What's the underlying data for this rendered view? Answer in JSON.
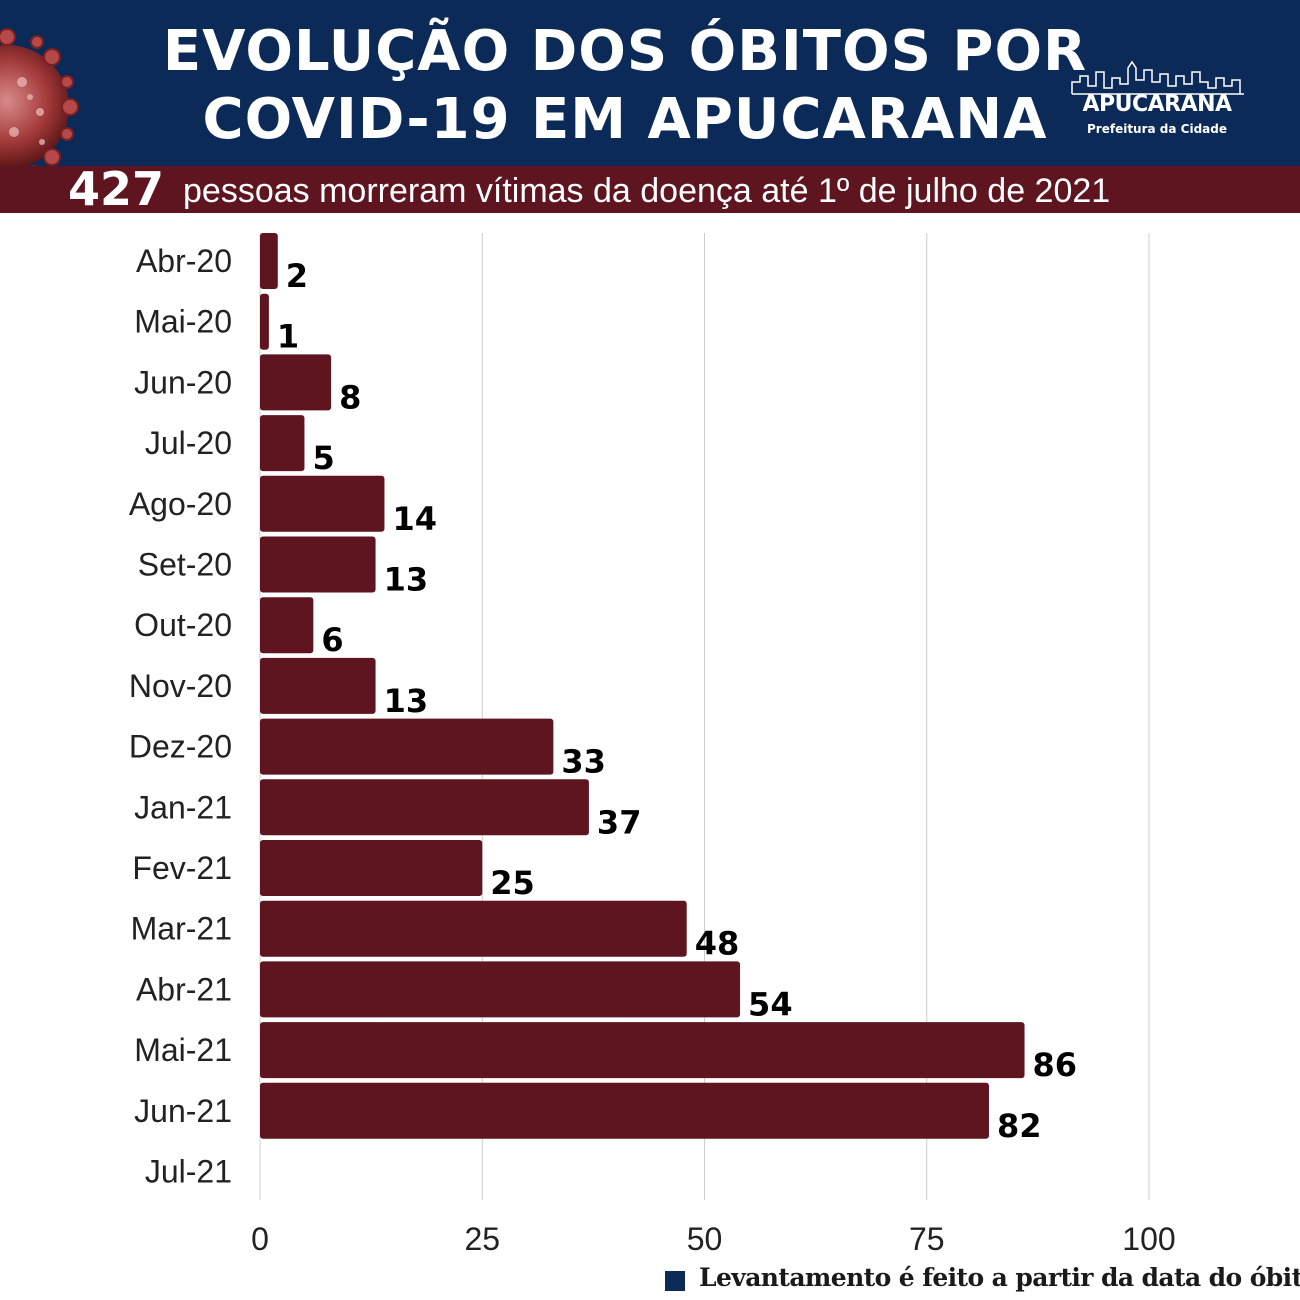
{
  "header": {
    "title_line1": "EVOLUÇÃO DOS ÓBITOS POR",
    "title_line2": "COVID-19 EM APUCARANA",
    "logo_name": "APUCARANA",
    "logo_sub": "Prefeitura da Cidade"
  },
  "banner": {
    "count": "427",
    "text": "pessoas morreram vítimas da doença até 1º de julho de 2021"
  },
  "footnote": "Levantamento é feito a partir da data do óbito",
  "colors": {
    "header_bg": "#0c2a57",
    "banner_bg": "#5e1520",
    "bar": "#5e1520",
    "grid": "#cccccc"
  },
  "chart_data": {
    "type": "bar",
    "orientation": "horizontal",
    "categories": [
      "Abr-20",
      "Mai-20",
      "Jun-20",
      "Jul-20",
      "Ago-20",
      "Set-20",
      "Out-20",
      "Nov-20",
      "Dez-20",
      "Jan-21",
      "Fev-21",
      "Mar-21",
      "Abr-21",
      "Mai-21",
      "Jun-21",
      "Jul-21"
    ],
    "values": [
      2,
      1,
      8,
      5,
      14,
      13,
      6,
      13,
      33,
      37,
      25,
      48,
      54,
      86,
      82,
      null
    ],
    "data_labels": [
      "2",
      "1",
      "8",
      "5",
      "14",
      "13",
      "6",
      "13",
      "33",
      "37",
      "25",
      "48",
      "54",
      "86",
      "82",
      ""
    ],
    "x_ticks": [
      0,
      25,
      50,
      75,
      100
    ],
    "xlim": [
      0,
      100
    ],
    "grid": "vertical",
    "legend": "none"
  }
}
